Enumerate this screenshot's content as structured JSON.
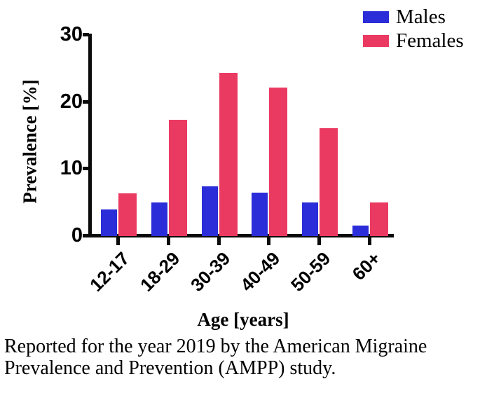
{
  "chart_data": {
    "type": "bar",
    "title": "",
    "categories": [
      "12-17",
      "18-29",
      "30-39",
      "40-49",
      "50-59",
      "60+"
    ],
    "series": [
      {
        "name": "Males",
        "color": "#2b2ed8",
        "values": [
          4.0,
          5.0,
          7.4,
          6.5,
          5.0,
          1.6
        ]
      },
      {
        "name": "Females",
        "color": "#eb3a62",
        "values": [
          6.4,
          17.3,
          24.4,
          22.2,
          16.1,
          5.0
        ]
      }
    ],
    "xlabel": "Age [years]",
    "ylabel": "Prevalence [%]",
    "ylim": [
      0,
      30
    ],
    "yticks": [
      0,
      10,
      20,
      30
    ],
    "grid": false,
    "legend_position": "top-right",
    "axis_color": "#0a0a0a",
    "background_color": "#ffffff"
  },
  "caption": {
    "line1": "Reported for the year 2019 by the American Migraine",
    "line2": "Prevalence and Prevention (AMPP) study."
  }
}
